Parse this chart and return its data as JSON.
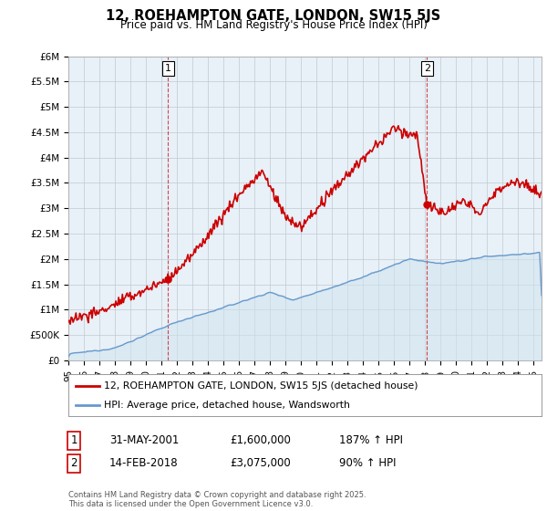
{
  "title": "12, ROEHAMPTON GATE, LONDON, SW15 5JS",
  "subtitle": "Price paid vs. HM Land Registry's House Price Index (HPI)",
  "ylabel_ticks": [
    "£0",
    "£500K",
    "£1M",
    "£1.5M",
    "£2M",
    "£2.5M",
    "£3M",
    "£3.5M",
    "£4M",
    "£4.5M",
    "£5M",
    "£5.5M",
    "£6M"
  ],
  "ylim": [
    0,
    6000000
  ],
  "ytick_values": [
    0,
    500000,
    1000000,
    1500000,
    2000000,
    2500000,
    3000000,
    3500000,
    4000000,
    4500000,
    5000000,
    5500000,
    6000000
  ],
  "xlim_start": 1995.0,
  "xlim_end": 2025.5,
  "xtick_years": [
    1995,
    1996,
    1997,
    1998,
    1999,
    2000,
    2001,
    2002,
    2003,
    2004,
    2005,
    2006,
    2007,
    2008,
    2009,
    2010,
    2011,
    2012,
    2013,
    2014,
    2015,
    2016,
    2017,
    2018,
    2019,
    2020,
    2021,
    2022,
    2023,
    2024,
    2025
  ],
  "xtick_labels": [
    "95",
    "96",
    "97",
    "98",
    "99",
    "00",
    "01",
    "02",
    "03",
    "04",
    "05",
    "06",
    "07",
    "08",
    "09",
    "10",
    "11",
    "12",
    "13",
    "14",
    "15",
    "16",
    "17",
    "18",
    "19",
    "20",
    "21",
    "22",
    "23",
    "24",
    "25"
  ],
  "red_color": "#cc0000",
  "blue_color": "#6699cc",
  "plot_bg_color": "#e8f0f8",
  "marker1_x": 2001.42,
  "marker1_y": 1600000,
  "marker2_x": 2018.12,
  "marker2_y": 3075000,
  "annotation1": {
    "label": "1",
    "date": "31-MAY-2001",
    "price": "£1,600,000",
    "pct": "187% ↑ HPI"
  },
  "annotation2": {
    "label": "2",
    "date": "14-FEB-2018",
    "price": "£3,075,000",
    "pct": "90% ↑ HPI"
  },
  "legend_line1": "12, ROEHAMPTON GATE, LONDON, SW15 5JS (detached house)",
  "legend_line2": "HPI: Average price, detached house, Wandsworth",
  "footer": "Contains HM Land Registry data © Crown copyright and database right 2025.\nThis data is licensed under the Open Government Licence v3.0.",
  "background_color": "#ffffff"
}
